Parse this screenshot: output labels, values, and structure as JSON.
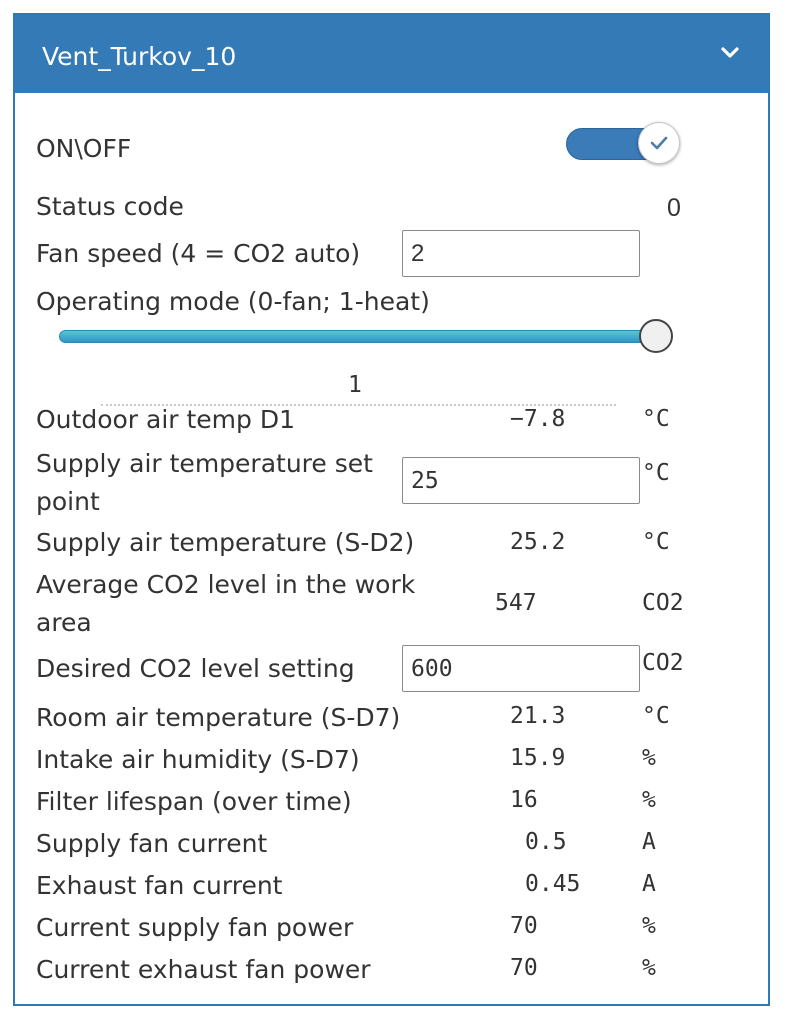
{
  "widget": {
    "title": "Vent_Turkov_10",
    "collapse_icon": "chevron-down-icon",
    "accent_color": "#337ab7"
  },
  "power": {
    "label": "ON\\OFF",
    "state": "on",
    "check_icon": "check-icon"
  },
  "status": {
    "label": "Status code",
    "value": "0"
  },
  "fan_speed": {
    "label": "Fan speed (4 = CO2 auto)",
    "value": "2"
  },
  "operating_mode": {
    "label": "Operating mode (0-fan; 1-heat)",
    "value": "1",
    "min": 0,
    "max": 1
  },
  "rows": {
    "outdoor_temp": {
      "label": "Outdoor air temp D1",
      "value": "−7.8",
      "unit": "°C"
    },
    "supply_setpoint": {
      "label": "Supply air temperature set point",
      "value": "25",
      "unit": "°C"
    },
    "supply_temp": {
      "label": "Supply air temperature (S-D2)",
      "value": "25.2",
      "unit": "°C"
    },
    "avg_co2": {
      "label": "Average CO2 level in the work area",
      "value": "547",
      "unit": "CO2"
    },
    "desired_co2": {
      "label": "Desired CO2 level setting",
      "value": "600",
      "unit": "CO2"
    },
    "room_temp": {
      "label": "Room air temperature (S-D7)",
      "value": "21.3",
      "unit": "°C"
    },
    "intake_humidity": {
      "label": "Intake air humidity (S-D7)",
      "value": "15.9",
      "unit": "%"
    },
    "filter_lifespan": {
      "label": "Filter lifespan (over time)",
      "value": "16",
      "unit": "%"
    },
    "supply_fan_current": {
      "label": "Supply fan current",
      "value": "0.5",
      "unit": "A"
    },
    "exhaust_fan_current": {
      "label": "Exhaust fan current",
      "value": "0.45",
      "unit": "A"
    },
    "supply_fan_power": {
      "label": "Current supply fan power",
      "value": "70",
      "unit": "%"
    },
    "exhaust_fan_power": {
      "label": "Current exhaust fan power",
      "value": "70",
      "unit": "%"
    }
  }
}
